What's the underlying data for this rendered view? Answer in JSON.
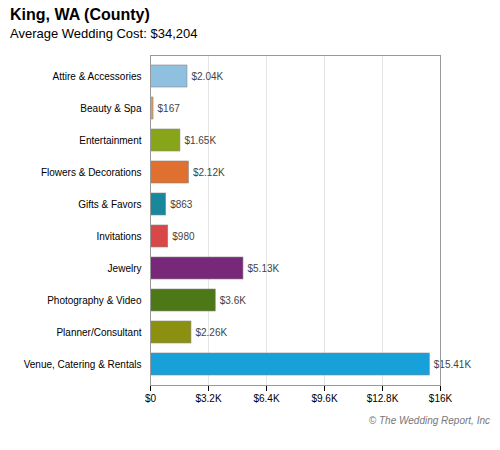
{
  "chart_data": {
    "type": "bar",
    "orientation": "horizontal",
    "title": "King, WA (County)",
    "subtitle": "Average Wedding Cost: $34,204",
    "annotations": [
      "© The Wedding Report, Inc"
    ],
    "categories": [
      "Attire & Accessories",
      "Beauty & Spa",
      "Entertainment",
      "Flowers & Decorations",
      "Gifts & Favors",
      "Invitations",
      "Jewelry",
      "Photography & Video",
      "Planner/Consultant",
      "Venue, Catering & Rentals"
    ],
    "values": [
      2040,
      167,
      1650,
      2120,
      863,
      980,
      5130,
      3600,
      2260,
      15410
    ],
    "value_labels": [
      "$2.04K",
      "$167",
      "$1.65K",
      "$2.12K",
      "$863",
      "$980",
      "$5.13K",
      "$3.6K",
      "$2.26K",
      "$15.41K"
    ],
    "data_labels": true,
    "colors": [
      "#90c0e0",
      "#d8a050",
      "#88a418",
      "#e07030",
      "#18889a",
      "#d84848",
      "#782878",
      "#4c7818",
      "#8c9010",
      "#18a0d8"
    ],
    "xlim": [
      0,
      16000
    ],
    "xticks": [
      {
        "value": 0,
        "label": "$0"
      },
      {
        "value": 3200,
        "label": "$3.2K"
      },
      {
        "value": 6400,
        "label": "$6.4K"
      },
      {
        "value": 9600,
        "label": "$9.6K"
      },
      {
        "value": 12800,
        "label": "$12.8K"
      },
      {
        "value": 16000,
        "label": "$16K"
      }
    ],
    "grid": true
  }
}
